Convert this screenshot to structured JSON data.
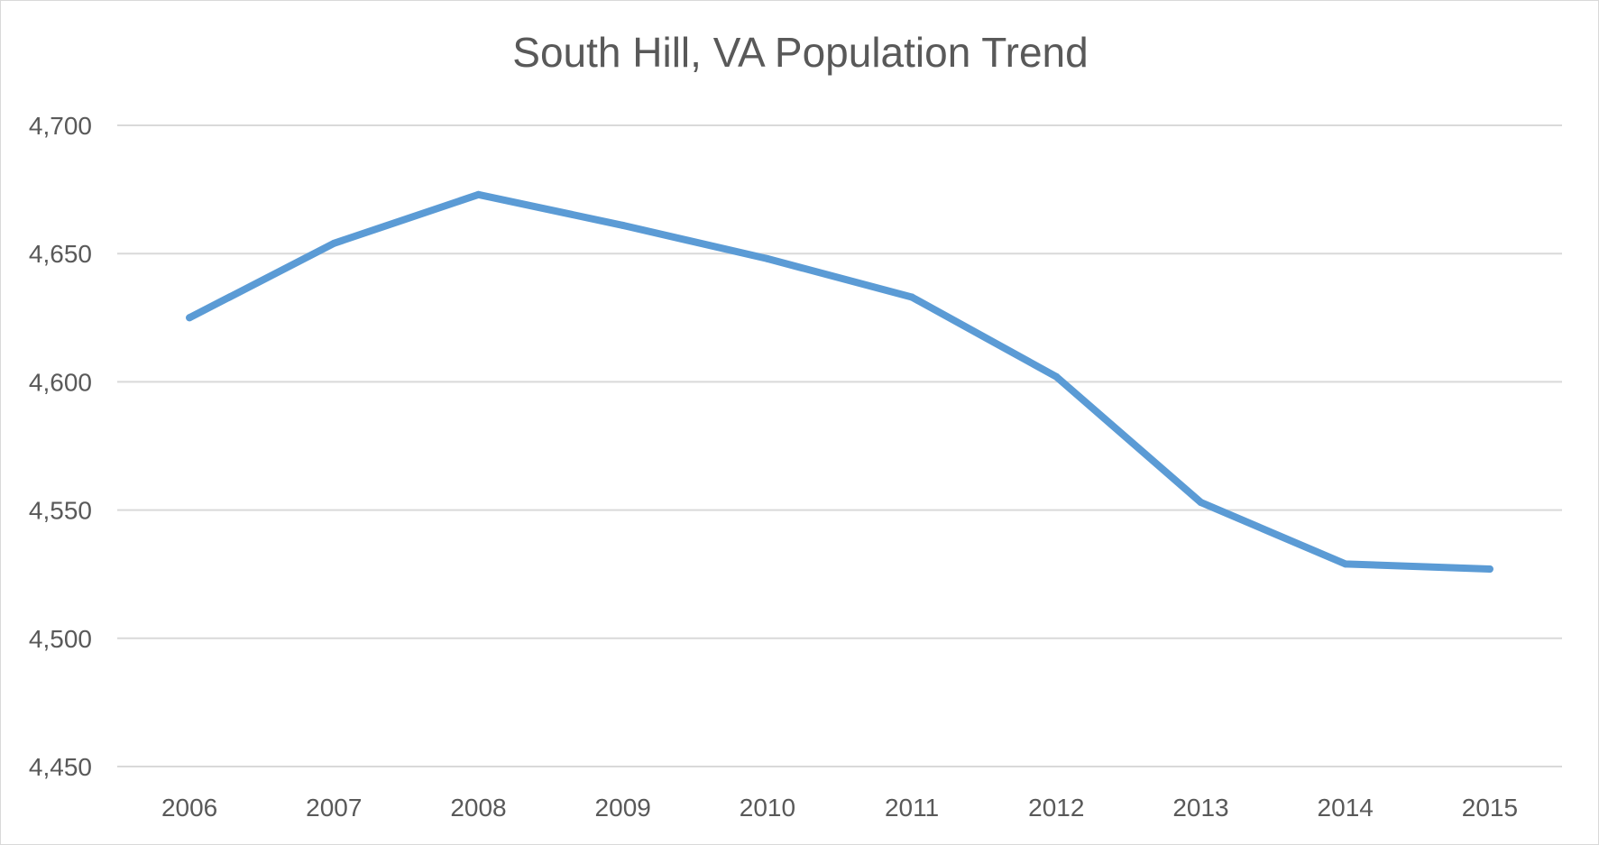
{
  "chart_data": {
    "type": "line",
    "title": "South Hill, VA Population Trend",
    "xlabel": "",
    "ylabel": "",
    "categories": [
      "2006",
      "2007",
      "2008",
      "2009",
      "2010",
      "2011",
      "2012",
      "2013",
      "2014",
      "2015"
    ],
    "series": [
      {
        "values": [
          4625,
          4654,
          4673,
          4661,
          4648,
          4633,
          4602,
          4553,
          4529,
          4527
        ],
        "color": "#5b9bd5"
      }
    ],
    "ylim": [
      4450,
      4700
    ],
    "yticks": [
      4450,
      4500,
      4550,
      4600,
      4650,
      4700
    ],
    "ytick_labels": [
      "4,450",
      "4,500",
      "4,550",
      "4,600",
      "4,650",
      "4,700"
    ],
    "grid": true,
    "gridline_color": "#d9d9d9",
    "legend": "none"
  }
}
